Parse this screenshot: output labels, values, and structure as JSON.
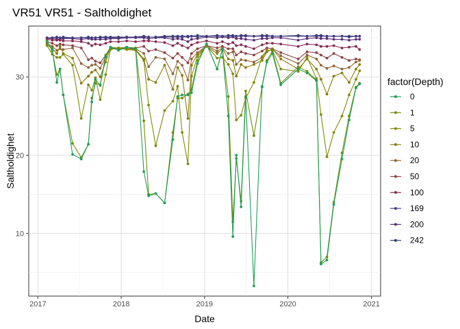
{
  "chart_data": {
    "type": "line",
    "title": "VR51 VR51  -  Saltholdighet",
    "xlabel": "Date",
    "ylabel": "Saltholdighet",
    "xlim": [
      "2017-01-01",
      "2021-01-01"
    ],
    "ylim": [
      2.0,
      36.5
    ],
    "x_ticks": [
      {
        "date": "2017-01-01",
        "label": "2017"
      },
      {
        "date": "2018-01-01",
        "label": "2018"
      },
      {
        "date": "2019-01-01",
        "label": "2019"
      },
      {
        "date": "2020-01-01",
        "label": "2020"
      },
      {
        "date": "2021-01-01",
        "label": "2021"
      }
    ],
    "y_ticks": [
      10,
      20,
      30
    ],
    "grid": true,
    "legend_title": "factor(Depth)",
    "legend_position": "right",
    "dates": [
      "2017-02-10",
      "2017-03-05",
      "2017-03-25",
      "2017-04-08",
      "2017-04-22",
      "2017-06-02",
      "2017-07-10",
      "2017-08-10",
      "2017-08-25",
      "2017-09-10",
      "2017-10-01",
      "2017-10-25",
      "2017-11-15",
      "2017-12-20",
      "2018-01-25",
      "2018-03-05",
      "2018-04-10",
      "2018-05-01",
      "2018-06-01",
      "2018-07-10",
      "2018-08-15",
      "2018-09-05",
      "2018-09-25",
      "2018-10-20",
      "2018-11-05",
      "2018-12-01",
      "2019-01-10",
      "2019-02-25",
      "2019-03-20",
      "2019-04-15",
      "2019-05-05",
      "2019-05-20",
      "2019-06-10",
      "2019-06-30",
      "2019-08-05",
      "2019-09-10",
      "2019-10-01",
      "2019-10-25",
      "2019-12-01",
      "2020-02-15",
      "2020-03-25",
      "2020-05-05",
      "2020-05-25",
      "2020-06-20",
      "2020-07-20",
      "2020-08-25",
      "2020-09-25",
      "2020-10-25",
      "2020-11-10"
    ],
    "series": [
      {
        "name": "0",
        "color": "#1f9e5b",
        "values": [
          34.5,
          33.5,
          29.3,
          31.0,
          27.7,
          20.1,
          19.5,
          21.4,
          26.8,
          29.7,
          28.9,
          32.5,
          33.8,
          33.4,
          33.8,
          33.6,
          17.9,
          14.8,
          15.1,
          13.9,
          22.0,
          27.5,
          27.7,
          27.7,
          28.0,
          31.7,
          34.2,
          31.0,
          33.5,
          25.0,
          9.6,
          20.0,
          13.4,
          27.5,
          3.3,
          28.7,
          31.9,
          33.0,
          29.0,
          31.0,
          30.5,
          29.5,
          6.1,
          6.6,
          13.7,
          19.5,
          24.5,
          28.6,
          29.1
        ]
      },
      {
        "name": "1",
        "color": "#6f8e07",
        "values": [
          34.6,
          33.3,
          30.3,
          31.0,
          27.7,
          21.5,
          19.7,
          21.4,
          27.3,
          29.2,
          29.0,
          32.8,
          33.8,
          33.7,
          33.8,
          33.7,
          24.4,
          15.0,
          15.1,
          13.9,
          22.9,
          27.3,
          27.3,
          27.8,
          28.4,
          32.1,
          34.2,
          31.0,
          33.6,
          27.5,
          11.5,
          19.6,
          14.1,
          28.2,
          22.5,
          28.8,
          32.1,
          33.3,
          29.2,
          31.3,
          30.7,
          29.6,
          6.3,
          7.0,
          14.0,
          20.3,
          25.0,
          28.7,
          29.2
        ]
      },
      {
        "name": "5",
        "color": "#7f8a06",
        "values": [
          34.0,
          32.9,
          32.5,
          32.5,
          32.9,
          31.5,
          24.7,
          29.0,
          28.3,
          29.9,
          27.1,
          30.3,
          33.5,
          33.7,
          33.5,
          33.4,
          32.1,
          26.4,
          21.2,
          25.7,
          26.9,
          28.8,
          22.9,
          18.9,
          30.1,
          32.6,
          34.0,
          32.4,
          32.5,
          31.6,
          30.4,
          24.5,
          25.1,
          27.3,
          29.3,
          32.6,
          33.4,
          33.4,
          31.0,
          30.7,
          32.5,
          29.8,
          25.2,
          19.8,
          22.9,
          25.0,
          27.7,
          29.7,
          30.8
        ]
      },
      {
        "name": "10",
        "color": "#8a7a0a",
        "values": [
          34.1,
          33.6,
          33.0,
          33.9,
          33.0,
          32.4,
          29.2,
          30.1,
          30.6,
          30.9,
          30.0,
          31.9,
          33.7,
          33.6,
          33.6,
          33.5,
          32.3,
          29.7,
          29.3,
          31.5,
          28.4,
          31.2,
          30.2,
          24.7,
          31.5,
          32.9,
          33.9,
          33.0,
          33.6,
          32.3,
          32.1,
          30.1,
          31.6,
          31.2,
          31.6,
          32.1,
          33.2,
          33.6,
          32.3,
          31.0,
          32.3,
          31.0,
          29.7,
          27.8,
          30.1,
          30.5,
          29.3,
          31.0,
          31.6
        ]
      },
      {
        "name": "20",
        "color": "#8f6434",
        "values": [
          34.3,
          33.9,
          33.4,
          33.6,
          33.5,
          33.7,
          31.7,
          31.2,
          31.5,
          31.6,
          31.1,
          32.6,
          33.6,
          33.7,
          33.6,
          33.6,
          33.0,
          31.3,
          32.5,
          32.3,
          30.4,
          32.0,
          31.5,
          29.6,
          32.3,
          33.1,
          34.0,
          33.3,
          33.7,
          33.0,
          33.2,
          31.6,
          32.2,
          32.1,
          31.9,
          32.5,
          33.3,
          33.5,
          32.7,
          31.7,
          32.8,
          32.3,
          31.5,
          31.1,
          31.4,
          31.0,
          31.2,
          31.9,
          32.1
        ]
      },
      {
        "name": "50",
        "color": "#8c4046",
        "values": [
          34.5,
          34.3,
          34.0,
          34.2,
          34.1,
          34.0,
          33.7,
          32.2,
          32.4,
          32.0,
          31.8,
          32.8,
          33.7,
          33.6,
          33.6,
          33.7,
          33.9,
          33.3,
          33.5,
          33.1,
          32.4,
          33.0,
          32.5,
          31.8,
          33.0,
          33.6,
          34.0,
          33.7,
          33.9,
          33.6,
          33.6,
          32.8,
          33.2,
          33.0,
          32.8,
          33.3,
          33.7,
          33.6,
          33.1,
          32.3,
          33.2,
          33.1,
          32.8,
          32.4,
          33.0,
          32.5,
          32.1,
          32.3,
          32.2
        ]
      },
      {
        "name": "100",
        "color": "#87294f",
        "values": [
          34.8,
          34.7,
          34.7,
          34.7,
          34.6,
          34.6,
          34.5,
          34.3,
          34.0,
          34.2,
          34.1,
          34.3,
          34.5,
          34.5,
          34.6,
          34.5,
          34.6,
          34.6,
          34.5,
          34.4,
          34.0,
          34.3,
          34.0,
          33.7,
          34.1,
          34.4,
          34.6,
          34.3,
          34.5,
          34.2,
          34.4,
          34.0,
          34.1,
          33.9,
          33.6,
          34.1,
          34.3,
          34.3,
          34.2,
          33.9,
          34.2,
          34.1,
          33.9,
          33.9,
          34.0,
          33.7,
          33.8,
          33.9,
          33.5
        ]
      },
      {
        "name": "169",
        "color": "#443a83",
        "values": [
          35.0,
          35.0,
          35.0,
          35.0,
          35.0,
          35.0,
          35.0,
          35.0,
          35.0,
          35.0,
          35.0,
          35.0,
          35.0,
          35.0,
          35.1,
          35.1,
          35.1,
          35.1,
          35.1,
          35.1,
          35.1,
          35.1,
          35.1,
          35.1,
          35.2,
          35.1,
          35.2,
          35.2,
          35.2,
          35.2,
          35.2,
          35.2,
          35.2,
          35.2,
          35.2,
          35.2,
          35.2,
          35.2,
          35.2,
          35.2,
          35.2,
          35.2,
          35.2,
          35.2,
          35.2,
          35.2,
          35.1,
          35.2,
          35.2
        ]
      },
      {
        "name": "200",
        "color": "#5c2d73",
        "values": [
          34.9,
          34.9,
          34.8,
          34.8,
          34.9,
          34.9,
          34.8,
          34.9,
          34.8,
          34.8,
          34.8,
          34.8,
          34.9,
          34.9,
          35.0,
          35.0,
          35.0,
          34.9,
          35.0,
          35.0,
          34.8,
          34.9,
          34.8,
          34.5,
          34.8,
          34.9,
          35.1,
          35.0,
          35.1,
          35.0,
          35.1,
          34.9,
          34.9,
          34.8,
          34.7,
          34.9,
          34.9,
          35.0,
          35.0,
          34.7,
          34.9,
          35.0,
          34.9,
          34.9,
          34.8,
          34.8,
          34.7,
          34.8,
          34.8
        ]
      },
      {
        "name": "242",
        "color": "#2e3a6e",
        "values": [
          35.0,
          35.0,
          35.1,
          35.0,
          35.1,
          35.0,
          35.0,
          35.1,
          35.0,
          35.0,
          35.1,
          35.1,
          35.1,
          35.1,
          35.1,
          35.1,
          35.2,
          35.1,
          35.1,
          35.2,
          35.2,
          35.2,
          35.2,
          35.2,
          35.2,
          35.3,
          35.2,
          35.3,
          35.2,
          35.3,
          35.3,
          35.2,
          35.3,
          35.3,
          35.2,
          35.3,
          35.3,
          35.2,
          35.2,
          35.3,
          35.2,
          35.3,
          35.3,
          35.2,
          35.2,
          35.2,
          35.2,
          35.2,
          35.2
        ]
      }
    ]
  }
}
